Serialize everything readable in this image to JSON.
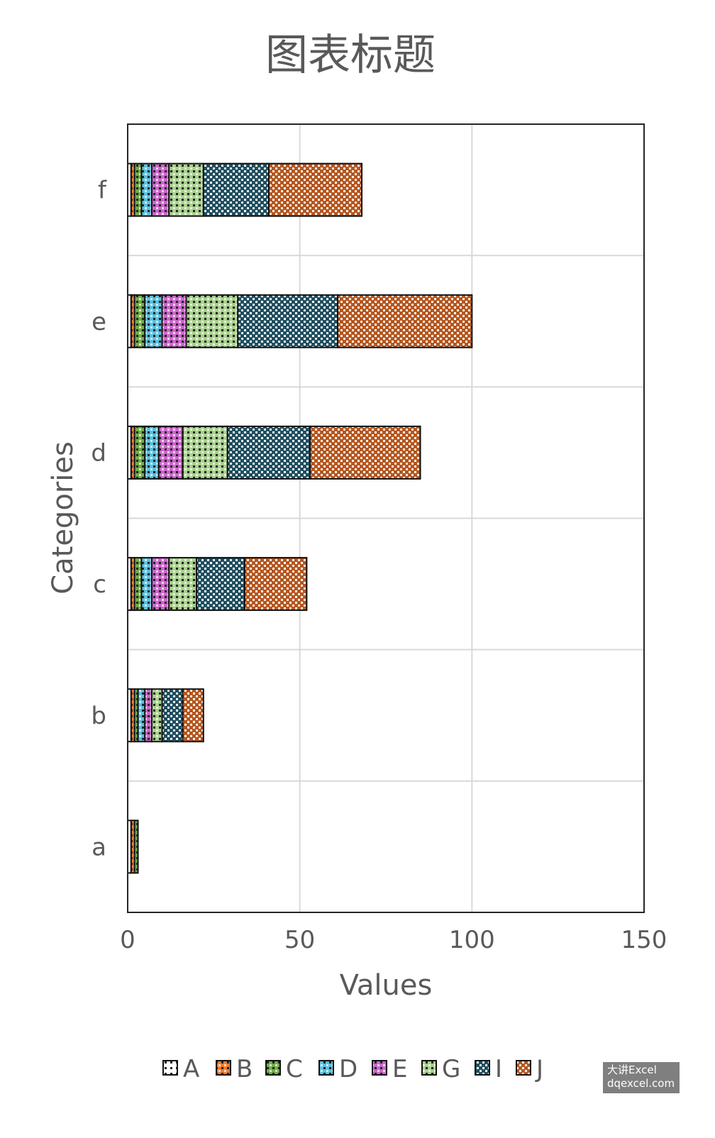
{
  "chart_data": {
    "type": "bar",
    "orientation": "horizontal",
    "stacked": true,
    "title": "图表标题",
    "xlabel": "Values",
    "ylabel": "Categories",
    "categories": [
      "a",
      "b",
      "c",
      "d",
      "e",
      "f"
    ],
    "xlim": [
      0,
      150
    ],
    "xticks": [
      "0",
      "50",
      "100",
      "150"
    ],
    "grid": true,
    "legend_position": "bottom",
    "series": [
      {
        "name": "A",
        "color": "#ffffff",
        "values": [
          1,
          1,
          1,
          1,
          1,
          1
        ]
      },
      {
        "name": "B",
        "color": "#ed7d31",
        "values": [
          1,
          1,
          1,
          1,
          1,
          1
        ]
      },
      {
        "name": "C",
        "color": "#70ad47",
        "values": [
          1,
          1,
          2,
          3,
          3,
          2
        ]
      },
      {
        "name": "D",
        "color": "#5bc0de",
        "values": [
          0,
          2,
          3,
          4,
          5,
          3
        ]
      },
      {
        "name": "E",
        "color": "#cc66cc",
        "values": [
          0,
          2,
          5,
          7,
          7,
          5
        ]
      },
      {
        "name": "G",
        "color": "#a9d18e",
        "values": [
          0,
          3,
          8,
          13,
          15,
          10
        ]
      },
      {
        "name": "I",
        "color": "#1f4e5f",
        "values": [
          0,
          6,
          14,
          24,
          29,
          19
        ]
      },
      {
        "name": "J",
        "color": "#b5561e",
        "values": [
          0,
          6,
          18,
          32,
          39,
          27
        ]
      }
    ]
  },
  "watermark": {
    "line1": "大讲Excel",
    "line2": "dqexcel.com"
  }
}
